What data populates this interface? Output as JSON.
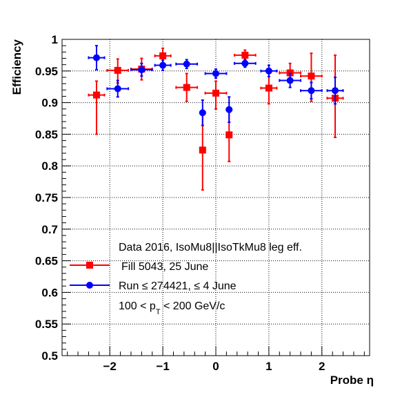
{
  "chart_data": {
    "type": "scatter",
    "xlabel": "Probe η",
    "ylabel": "Efficiency",
    "xlim": [
      -2.9,
      2.9
    ],
    "ylim": [
      0.5,
      1.0
    ],
    "grid": true,
    "x_ticks": [
      -2,
      -1,
      0,
      1,
      2
    ],
    "x_tick_labels": [
      "−2",
      "−1",
      "0",
      "1",
      "2"
    ],
    "y_ticks": [
      0.5,
      0.55,
      0.6,
      0.65,
      0.7,
      0.75,
      0.8,
      0.85,
      0.9,
      0.95,
      1.0
    ],
    "y_tick_labels": [
      "0.5",
      "0.55",
      "0.6",
      "0.65",
      "0.7",
      "0.75",
      "0.8",
      "0.85",
      "0.9",
      "0.95",
      "1"
    ],
    "legend_header": "Data 2016, IsoMu8||IsoTkMu8 leg eff.",
    "pt_label": {
      "prefix": "100 < p",
      "subscript": "T",
      "suffix": " < 200 GeV/c"
    },
    "series": [
      {
        "name": "Fill 5043, 25 June",
        "color": "#ff0000",
        "marker": "square",
        "points": [
          {
            "x": -2.25,
            "xerr": 0.15,
            "y": 0.912,
            "yerr_low": 0.062,
            "yerr_high": 0.022
          },
          {
            "x": -1.85,
            "xerr": 0.2,
            "y": 0.951,
            "yerr_low": 0.02,
            "yerr_high": 0.018
          },
          {
            "x": -1.4,
            "xerr": 0.2,
            "y": 0.953,
            "yerr_low": 0.017,
            "yerr_high": 0.017
          },
          {
            "x": -1.0,
            "xerr": 0.15,
            "y": 0.974,
            "yerr_low": 0.012,
            "yerr_high": 0.012
          },
          {
            "x": -0.55,
            "xerr": 0.2,
            "y": 0.924,
            "yerr_low": 0.022,
            "yerr_high": 0.022
          },
          {
            "x": -0.25,
            "xerr": 0.05,
            "y": 0.825,
            "yerr_low": 0.063,
            "yerr_high": 0.063
          },
          {
            "x": 0.0,
            "xerr": 0.2,
            "y": 0.915,
            "yerr_low": 0.025,
            "yerr_high": 0.019
          },
          {
            "x": 0.25,
            "xerr": 0.05,
            "y": 0.849,
            "yerr_low": 0.042,
            "yerr_high": 0.042
          },
          {
            "x": 0.55,
            "xerr": 0.2,
            "y": 0.975,
            "yerr_low": 0.008,
            "yerr_high": 0.008
          },
          {
            "x": 1.0,
            "xerr": 0.15,
            "y": 0.923,
            "yerr_low": 0.025,
            "yerr_high": 0.025
          },
          {
            "x": 1.4,
            "xerr": 0.2,
            "y": 0.947,
            "yerr_low": 0.015,
            "yerr_high": 0.015
          },
          {
            "x": 1.8,
            "xerr": 0.2,
            "y": 0.942,
            "yerr_low": 0.04,
            "yerr_high": 0.036
          },
          {
            "x": 2.25,
            "xerr": 0.15,
            "y": 0.907,
            "yerr_low": 0.062,
            "yerr_high": 0.068
          }
        ]
      },
      {
        "name": "Run ≤ 274421, ≤ 4 June",
        "color": "#0000ff",
        "marker": "circle",
        "points": [
          {
            "x": -2.25,
            "xerr": 0.15,
            "y": 0.971,
            "yerr_low": 0.019,
            "yerr_high": 0.019
          },
          {
            "x": -1.85,
            "xerr": 0.2,
            "y": 0.922,
            "yerr_low": 0.013,
            "yerr_high": 0.013
          },
          {
            "x": -1.4,
            "xerr": 0.2,
            "y": 0.952,
            "yerr_low": 0.01,
            "yerr_high": 0.01
          },
          {
            "x": -1.0,
            "xerr": 0.15,
            "y": 0.959,
            "yerr_low": 0.008,
            "yerr_high": 0.008
          },
          {
            "x": -0.55,
            "xerr": 0.2,
            "y": 0.961,
            "yerr_low": 0.007,
            "yerr_high": 0.007
          },
          {
            "x": -0.25,
            "xerr": 0.05,
            "y": 0.884,
            "yerr_low": 0.02,
            "yerr_high": 0.02
          },
          {
            "x": 0.0,
            "xerr": 0.2,
            "y": 0.946,
            "yerr_low": 0.007,
            "yerr_high": 0.007
          },
          {
            "x": 0.25,
            "xerr": 0.05,
            "y": 0.889,
            "yerr_low": 0.02,
            "yerr_high": 0.02
          },
          {
            "x": 0.55,
            "xerr": 0.2,
            "y": 0.962,
            "yerr_low": 0.006,
            "yerr_high": 0.006
          },
          {
            "x": 1.0,
            "xerr": 0.15,
            "y": 0.95,
            "yerr_low": 0.009,
            "yerr_high": 0.009
          },
          {
            "x": 1.4,
            "xerr": 0.2,
            "y": 0.935,
            "yerr_low": 0.011,
            "yerr_high": 0.011
          },
          {
            "x": 1.8,
            "xerr": 0.2,
            "y": 0.919,
            "yerr_low": 0.013,
            "yerr_high": 0.013
          },
          {
            "x": 2.25,
            "xerr": 0.15,
            "y": 0.919,
            "yerr_low": 0.021,
            "yerr_high": 0.021
          }
        ]
      }
    ]
  }
}
